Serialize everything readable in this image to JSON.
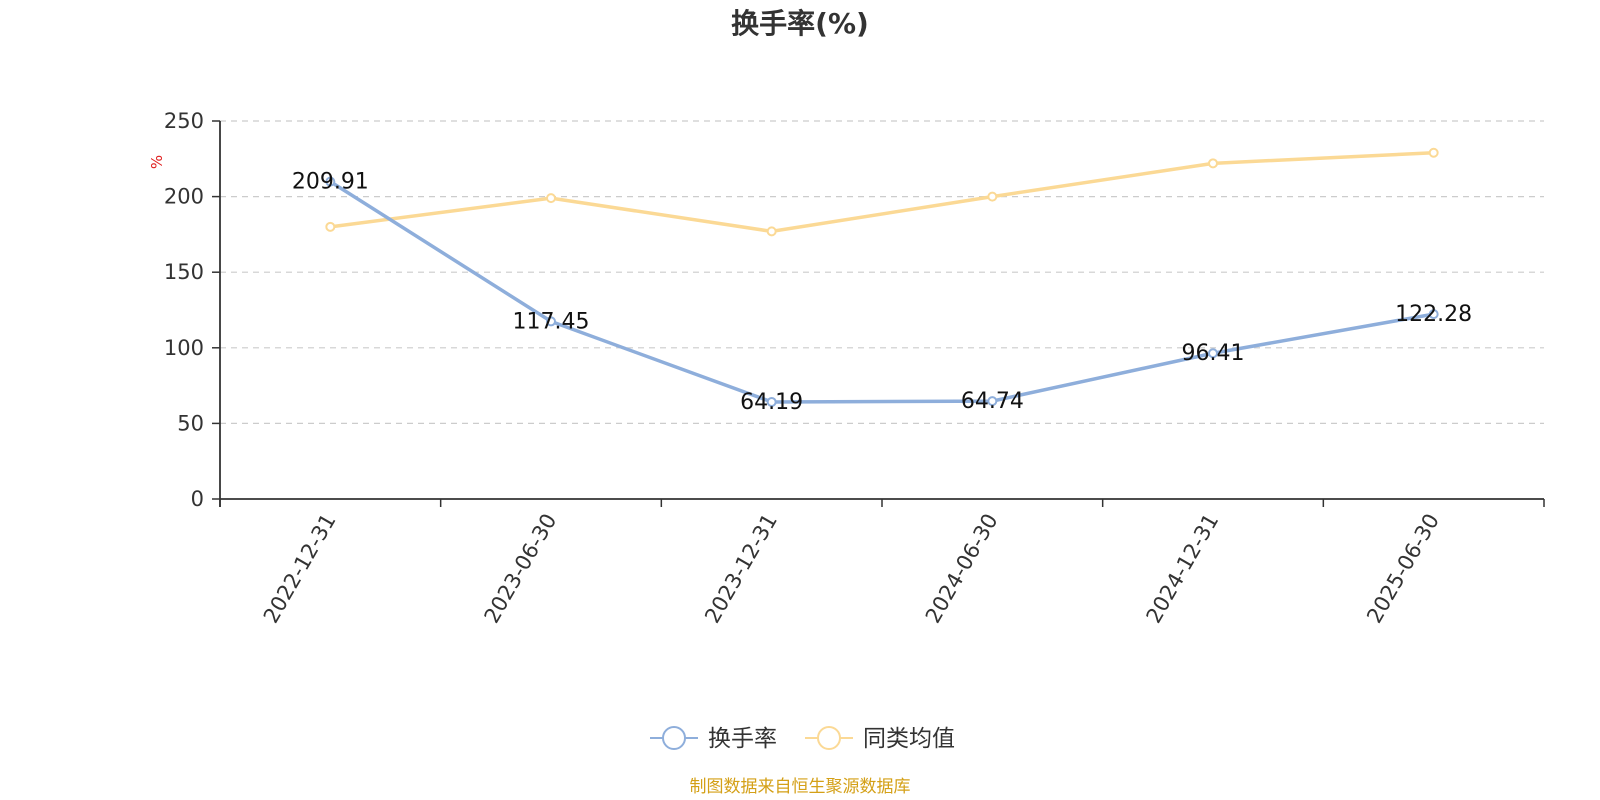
{
  "chart_data": {
    "type": "line",
    "title": "换手率(%)",
    "ylabel": "%",
    "xlabel": "",
    "categories": [
      "2022-12-31",
      "2023-06-30",
      "2023-12-31",
      "2024-06-30",
      "2024-12-31",
      "2025-06-30"
    ],
    "series": [
      {
        "name": "换手率",
        "values": [
          209.91,
          117.45,
          64.19,
          64.74,
          96.41,
          122.28
        ],
        "color": "#8eaedb",
        "labels": [
          "209.91",
          "117.45",
          "64.19",
          "64.74",
          "96.41",
          "122.28"
        ]
      },
      {
        "name": "同类均值",
        "values": [
          180,
          199,
          177,
          200,
          222,
          229
        ],
        "color": "#fbd995"
      }
    ],
    "ylim": [
      0,
      250
    ],
    "yticks": [
      "0",
      "50",
      "100",
      "150",
      "200",
      "250"
    ],
    "grid": true,
    "legend": "bottom-center"
  },
  "source_note": "制图数据来自恒生聚源数据库",
  "colors": {
    "unit_label": "#e02020",
    "source_note": "#d4a017",
    "axis": "#333333",
    "grid": "#cccccc"
  }
}
